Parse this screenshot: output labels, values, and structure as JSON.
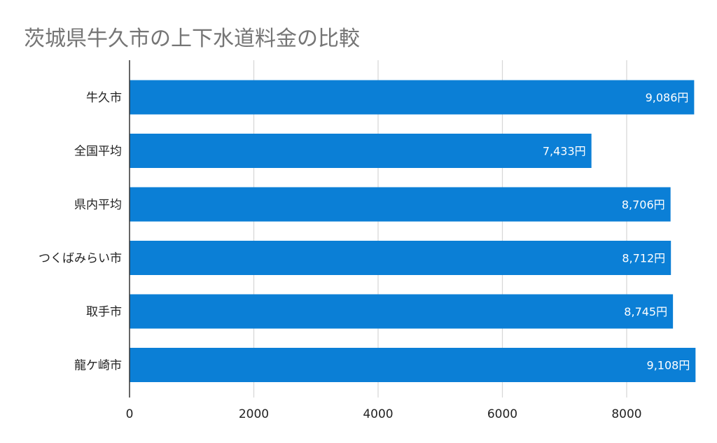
{
  "chart_data": {
    "type": "bar",
    "orientation": "horizontal",
    "title": "茨城県牛久市の上下水道料金の比較",
    "categories": [
      "牛久市",
      "全国平均",
      "県内平均",
      "つくばみらい市",
      "取手市",
      "龍ケ崎市"
    ],
    "values": [
      9086,
      7433,
      8706,
      8712,
      8745,
      9108
    ],
    "data_labels": [
      "9,086円",
      "7,433円",
      "8,706円",
      "8,712円",
      "8,745円",
      "9,108円"
    ],
    "xlim": [
      0,
      9000
    ],
    "x_ticks": [
      0,
      2000,
      4000,
      6000,
      8000
    ],
    "x_tick_labels": [
      "0",
      "2000",
      "4000",
      "6000",
      "8000"
    ],
    "grid": "vertical",
    "legend": "none",
    "colors": {
      "bar": "#0b7fd6",
      "title": "#757575",
      "grid": "#d6d6d6",
      "axis": "#333333",
      "label_text": "#ffffff",
      "tick_text": "#222222"
    }
  }
}
